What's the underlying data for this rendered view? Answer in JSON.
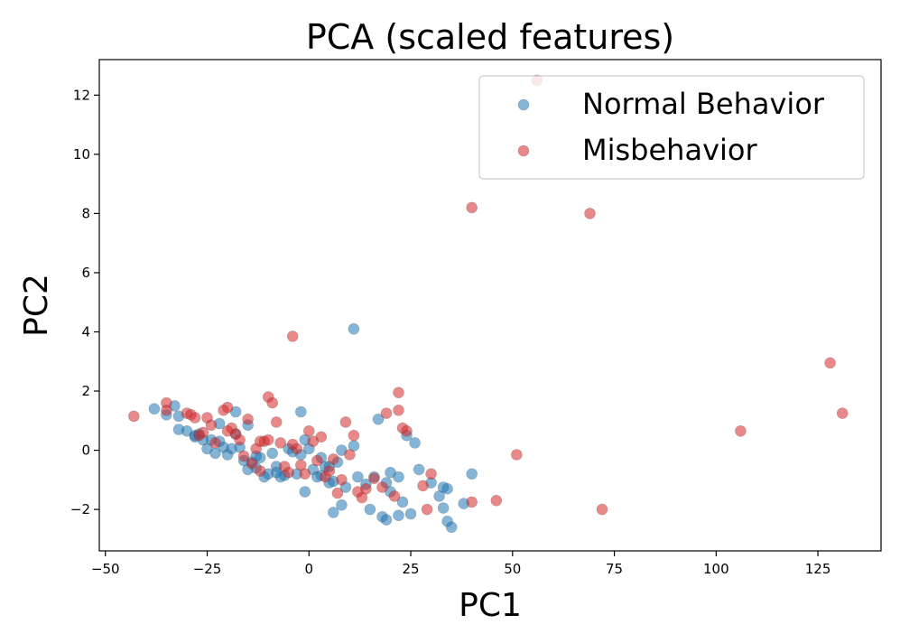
{
  "chart_data": {
    "type": "scatter",
    "title": "PCA (scaled features)",
    "xlabel": "PC1",
    "ylabel": "PC2",
    "xlim": [
      -51.5,
      140.5
    ],
    "ylim": [
      -3.4,
      13.2
    ],
    "xticks": [
      -50,
      -25,
      0,
      25,
      50,
      75,
      100,
      125
    ],
    "yticks": [
      -2,
      0,
      2,
      4,
      6,
      8,
      10,
      12
    ],
    "xtick_labels": [
      "−50",
      "−25",
      "0",
      "25",
      "50",
      "75",
      "100",
      "125"
    ],
    "ytick_labels": [
      "−2",
      "0",
      "2",
      "4",
      "6",
      "8",
      "10",
      "12"
    ],
    "legend_position": "upper right",
    "series": [
      {
        "name": "Normal Behavior",
        "color": "#1f77b4",
        "points": [
          [
            -38,
            1.4
          ],
          [
            -33,
            1.5
          ],
          [
            -35,
            1.2
          ],
          [
            -32,
            1.15
          ],
          [
            -30,
            0.65
          ],
          [
            -32,
            0.7
          ],
          [
            -28,
            0.5
          ],
          [
            -27,
            0.55
          ],
          [
            -26,
            0.35
          ],
          [
            -25,
            0.05
          ],
          [
            -24,
            0.35
          ],
          [
            -23,
            -0.1
          ],
          [
            -22,
            0.3
          ],
          [
            -22,
            0.9
          ],
          [
            -21,
            0.1
          ],
          [
            -20,
            -0.15
          ],
          [
            -19,
            0.05
          ],
          [
            -18,
            0.55
          ],
          [
            -17,
            0.1
          ],
          [
            -16,
            -0.35
          ],
          [
            -15,
            -0.65
          ],
          [
            -14,
            -0.4
          ],
          [
            -13,
            -0.6
          ],
          [
            -12,
            -0.25
          ],
          [
            -11,
            -0.9
          ],
          [
            -10,
            -0.8
          ],
          [
            -9,
            -0.1
          ],
          [
            -8,
            -0.55
          ],
          [
            -7,
            -0.9
          ],
          [
            -6,
            -0.85
          ],
          [
            -5,
            0.05
          ],
          [
            -4,
            -0.05
          ],
          [
            -2,
            -0.15
          ],
          [
            -3,
            -0.8
          ],
          [
            -2,
            1.3
          ],
          [
            -1,
            0.35
          ],
          [
            0,
            0.05
          ],
          [
            1,
            -0.65
          ],
          [
            2,
            -0.9
          ],
          [
            -1,
            -1.4
          ],
          [
            3,
            -0.25
          ],
          [
            4,
            -0.55
          ],
          [
            5,
            -1.1
          ],
          [
            6,
            -1.05
          ],
          [
            6,
            -2.1
          ],
          [
            7,
            -0.4
          ],
          [
            8,
            0.0
          ],
          [
            9,
            -1.25
          ],
          [
            8,
            -1.85
          ],
          [
            11,
            0.15
          ],
          [
            11,
            4.1
          ],
          [
            14,
            -1.15
          ],
          [
            15,
            -2.0
          ],
          [
            16,
            -0.9
          ],
          [
            17,
            1.05
          ],
          [
            18,
            -2.25
          ],
          [
            19,
            -2.35
          ],
          [
            20,
            -0.75
          ],
          [
            19,
            -1.1
          ],
          [
            20,
            -1.4
          ],
          [
            22,
            -2.2
          ],
          [
            23,
            -1.75
          ],
          [
            22,
            -0.9
          ],
          [
            24,
            0.5
          ],
          [
            25,
            -2.15
          ],
          [
            26,
            0.25
          ],
          [
            27,
            -0.65
          ],
          [
            30,
            -1.1
          ],
          [
            32,
            -1.55
          ],
          [
            33,
            -1.25
          ],
          [
            33,
            -1.95
          ],
          [
            34,
            -2.4
          ],
          [
            35,
            -2.6
          ],
          [
            34,
            -1.3
          ],
          [
            38,
            -1.8
          ],
          [
            40,
            -0.8
          ],
          [
            -8,
            -0.75
          ],
          [
            -13,
            -0.2
          ],
          [
            3,
            -0.85
          ],
          [
            5,
            -0.55
          ],
          [
            12,
            -0.9
          ],
          [
            -18,
            1.3
          ],
          [
            -15,
            0.85
          ],
          [
            -28,
            0.45
          ]
        ]
      },
      {
        "name": "Misbehavior",
        "color": "#d62728",
        "points": [
          [
            -43,
            1.15
          ],
          [
            -35,
            1.6
          ],
          [
            -35,
            1.35
          ],
          [
            -30,
            1.25
          ],
          [
            -29,
            1.2
          ],
          [
            -28,
            1.1
          ],
          [
            -27,
            0.5
          ],
          [
            -26,
            0.6
          ],
          [
            -25,
            1.1
          ],
          [
            -24,
            0.85
          ],
          [
            -23,
            0.25
          ],
          [
            -21,
            1.35
          ],
          [
            -20,
            1.45
          ],
          [
            -19,
            0.75
          ],
          [
            -18,
            0.55
          ],
          [
            -17,
            0.35
          ],
          [
            -16,
            -0.2
          ],
          [
            -15,
            1.05
          ],
          [
            -14,
            -0.45
          ],
          [
            -13,
            0.05
          ],
          [
            -12,
            -0.7
          ],
          [
            -11,
            0.3
          ],
          [
            -10,
            1.8
          ],
          [
            -10,
            0.35
          ],
          [
            -9,
            1.6
          ],
          [
            -8,
            0.95
          ],
          [
            -7,
            0.25
          ],
          [
            -6,
            -0.55
          ],
          [
            -5,
            -0.75
          ],
          [
            -4,
            0.2
          ],
          [
            -3,
            0.05
          ],
          [
            -2,
            -0.5
          ],
          [
            -1,
            -0.8
          ],
          [
            0,
            0.65
          ],
          [
            1,
            0.3
          ],
          [
            2,
            -0.35
          ],
          [
            3,
            0.45
          ],
          [
            4,
            -0.9
          ],
          [
            5,
            -0.7
          ],
          [
            6,
            -0.3
          ],
          [
            7,
            -1.45
          ],
          [
            8,
            -1.0
          ],
          [
            9,
            0.95
          ],
          [
            10,
            -0.15
          ],
          [
            11,
            0.5
          ],
          [
            12,
            -1.4
          ],
          [
            13,
            -1.6
          ],
          [
            14,
            -1.3
          ],
          [
            16,
            -0.95
          ],
          [
            18,
            -1.25
          ],
          [
            19,
            1.25
          ],
          [
            21,
            -1.55
          ],
          [
            22,
            1.95
          ],
          [
            22,
            1.35
          ],
          [
            23,
            0.75
          ],
          [
            24,
            0.65
          ],
          [
            28,
            -1.2
          ],
          [
            29,
            -2.0
          ],
          [
            30,
            -0.8
          ],
          [
            40,
            -1.75
          ],
          [
            46,
            -1.7
          ],
          [
            51,
            -0.15
          ],
          [
            40,
            8.2
          ],
          [
            56,
            12.5
          ],
          [
            69,
            8.0
          ],
          [
            72,
            -2.0
          ],
          [
            106,
            0.65
          ],
          [
            128,
            2.95
          ],
          [
            131,
            1.25
          ],
          [
            -4,
            3.85
          ],
          [
            -20,
            0.65
          ],
          [
            -12,
            0.3
          ]
        ]
      }
    ]
  }
}
